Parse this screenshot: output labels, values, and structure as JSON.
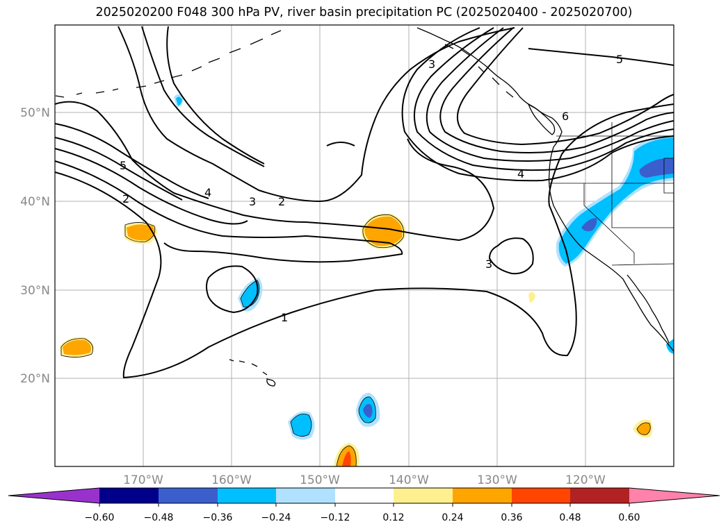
{
  "title": "2025020200 F048 300 hPa PV, river basin precipitation PC (2025020400 - 2025020700)",
  "map": {
    "lat_labels": [
      "50°N",
      "40°N",
      "30°N",
      "20°N"
    ],
    "lon_labels": [
      "170°W",
      "160°W",
      "150°W",
      "140°W",
      "130°W",
      "120°W"
    ],
    "contour_labels": [
      "5",
      "2",
      "4",
      "3",
      "2",
      "3",
      "1",
      "3",
      "6",
      "4",
      "5"
    ],
    "contour_color": "#000000",
    "gridline_color": "#b0b0b0"
  },
  "colorbar": {
    "tick_labels": [
      "−0.60",
      "−0.48",
      "−0.36",
      "−0.24",
      "−0.12",
      "0.12",
      "0.24",
      "0.36",
      "0.48",
      "0.60"
    ],
    "colors": [
      "#9932cc",
      "#00008b",
      "#3a5fcd",
      "#00bfff",
      "#b0e2ff",
      "#ffffff",
      "#fff08f",
      "#ffa500",
      "#ff4500",
      "#b22222",
      "#ff82ab"
    ]
  }
}
